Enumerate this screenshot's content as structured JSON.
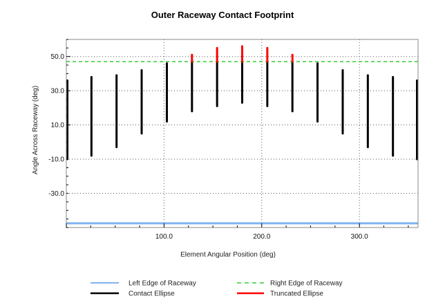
{
  "chart_data": {
    "type": "line",
    "title": "Outer Raceway Contact Footprint",
    "xlabel": "Element Angular Position (deg)",
    "ylabel": "Angle Across Raceway (deg)",
    "xlim": [
      0,
      360
    ],
    "ylim": [
      -50,
      60
    ],
    "x_ticks": [
      100,
      200,
      300
    ],
    "x_tick_labels": [
      "100.0",
      "200.0",
      "300.0"
    ],
    "y_ticks": [
      50,
      30,
      10,
      -10,
      -30
    ],
    "y_tick_labels": [
      "50.0",
      "30.0",
      "10.0",
      "-10.0",
      "-30.0"
    ],
    "grid": true,
    "legend_position": "bottom",
    "raceway_edges": {
      "left": -47.5,
      "right": 47
    },
    "series": [
      {
        "name": "Left Edge of Raceway",
        "color": "#7fb2f0",
        "style": "solid"
      },
      {
        "name": "Right Edge of Raceway",
        "color": "#33cc33",
        "style": "dashed"
      },
      {
        "name": "Contact Ellipse",
        "color": "#000000",
        "style": "solid"
      },
      {
        "name": "Truncated Ellipse",
        "color": "#ff0000",
        "style": "solid"
      }
    ],
    "ellipses": [
      {
        "x": 0,
        "y_min": -10,
        "y_max": 36,
        "trunc_top": null
      },
      {
        "x": 25.7,
        "y_min": -8,
        "y_max": 38,
        "trunc_top": null
      },
      {
        "x": 51.4,
        "y_min": -3,
        "y_max": 39,
        "trunc_top": null
      },
      {
        "x": 77.1,
        "y_min": 5,
        "y_max": 42,
        "trunc_top": null
      },
      {
        "x": 102.9,
        "y_min": 12,
        "y_max": 46,
        "trunc_top": null
      },
      {
        "x": 128.6,
        "y_min": 18,
        "y_max": 47,
        "trunc_top": 51
      },
      {
        "x": 154.3,
        "y_min": 21,
        "y_max": 47,
        "trunc_top": 55
      },
      {
        "x": 180,
        "y_min": 23,
        "y_max": 47,
        "trunc_top": 56
      },
      {
        "x": 205.7,
        "y_min": 21,
        "y_max": 47,
        "trunc_top": 55
      },
      {
        "x": 231.4,
        "y_min": 18,
        "y_max": 47,
        "trunc_top": 51
      },
      {
        "x": 257.1,
        "y_min": 12,
        "y_max": 46,
        "trunc_top": null
      },
      {
        "x": 282.9,
        "y_min": 5,
        "y_max": 42,
        "trunc_top": null
      },
      {
        "x": 308.6,
        "y_min": -3,
        "y_max": 39,
        "trunc_top": null
      },
      {
        "x": 334.3,
        "y_min": -8,
        "y_max": 38,
        "trunc_top": null
      },
      {
        "x": 360,
        "y_min": -10,
        "y_max": 36,
        "trunc_top": null
      }
    ]
  }
}
